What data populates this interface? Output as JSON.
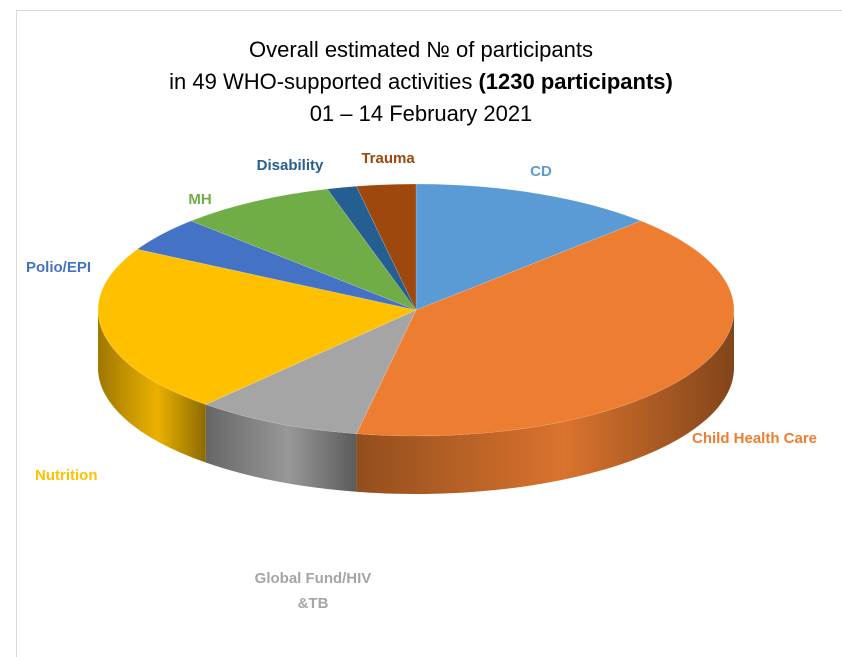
{
  "chart_data": {
    "type": "pie",
    "title_line1": "Overall estimated № of participants",
    "title_line2_prefix": "in 49 WHO-supported activities ",
    "title_line2_bold": "(1230 participants)",
    "title_line3": "01 – 14 February 2021",
    "slices": [
      {
        "label": "CD",
        "value": 12.5,
        "color": "#5b9bd5"
      },
      {
        "label": "Child Health Care",
        "value": 40.5,
        "color": "#ed7d31"
      },
      {
        "label": "Global Fund/HIV &TB",
        "value": 8.5,
        "color": "#a5a5a5"
      },
      {
        "label": "Nutrition",
        "value": 21.5,
        "color": "#ffc000"
      },
      {
        "label": "Polio/EPI",
        "value": 4.5,
        "color": "#4472c4"
      },
      {
        "label": "MH",
        "value": 8.0,
        "color": "#70ad47"
      },
      {
        "label": "Disability",
        "value": 1.5,
        "color": "#255e91"
      },
      {
        "label": "Trauma",
        "value": 3.0,
        "color": "#9e480e"
      }
    ]
  }
}
